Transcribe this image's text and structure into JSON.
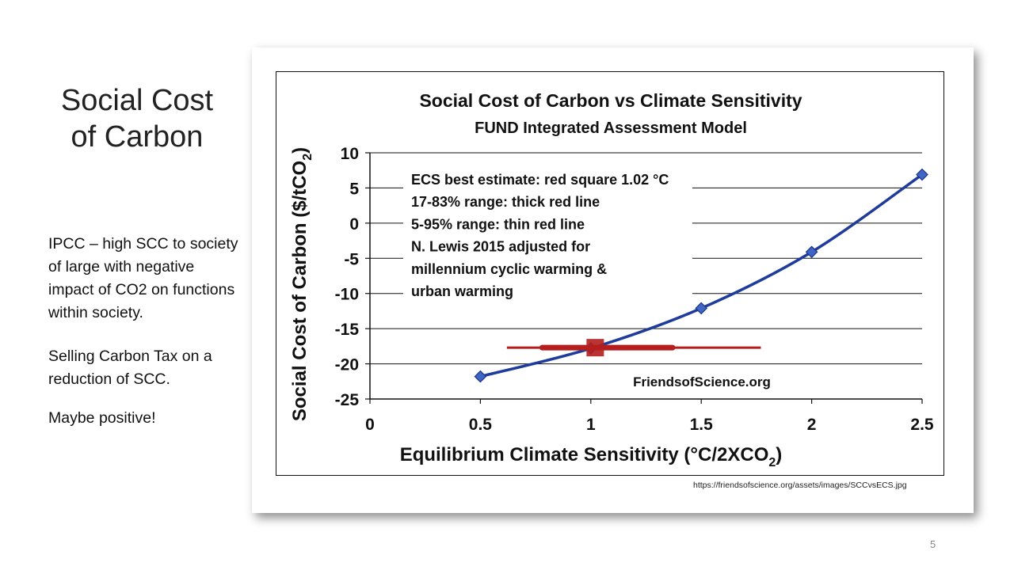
{
  "slide": {
    "title_line1": "Social Cost",
    "title_line2": "of Carbon",
    "paragraph1": "IPCC – high SCC to society of large with negative impact of CO2 on functions within society.",
    "paragraph2": "Selling Carbon Tax on a reduction of SCC.",
    "paragraph3": "Maybe positive!",
    "source_url": "https://friendsofscience.org/assets/images/SCCvsECS.jpg",
    "page_number": "5"
  },
  "chart_data": {
    "type": "line",
    "title": "Social Cost of Carbon vs Climate Sensitivity",
    "subtitle": "FUND Integrated Assessment Model",
    "xlabel": "Equilibrium Climate Sensitivity (°C/2XCO",
    "xlabel_sub": "2",
    "xlabel_end": ")",
    "ylabel": "Social Cost of Carbon ($/tCO",
    "ylabel_sub": "2",
    "ylabel_end": ")",
    "xlim": [
      0,
      2.5
    ],
    "ylim": [
      -25,
      10
    ],
    "x_ticks": [
      "0",
      "0.5",
      "1",
      "1.5",
      "2",
      "2.5"
    ],
    "y_ticks": [
      "10",
      "5",
      "0",
      "-5",
      "-10",
      "-15",
      "-20",
      "-25"
    ],
    "grid": "horizontal",
    "series": [
      {
        "x": [
          0.5,
          1.0,
          1.5,
          2.0,
          2.5
        ],
        "y": [
          -21.8,
          -17.8,
          -12.1,
          -4.1,
          6.9
        ],
        "color": "#1f3c9c",
        "marker": "diamond"
      }
    ],
    "best_estimate": {
      "x": 1.02,
      "y": -17.7,
      "color": "#b41e1e"
    },
    "range_17_83": [
      0.78,
      1.37
    ],
    "range_5_95": [
      0.62,
      1.77
    ],
    "annotations": [
      "ECS best estimate: red square 1.02 °C",
      "17-83% range: thick red line",
      "5-95% range: thin red line",
      "N. Lewis 2015 adjusted for",
      "millennium cyclic warming &",
      "urban warming"
    ],
    "watermark": "FriendsofScience.org"
  }
}
